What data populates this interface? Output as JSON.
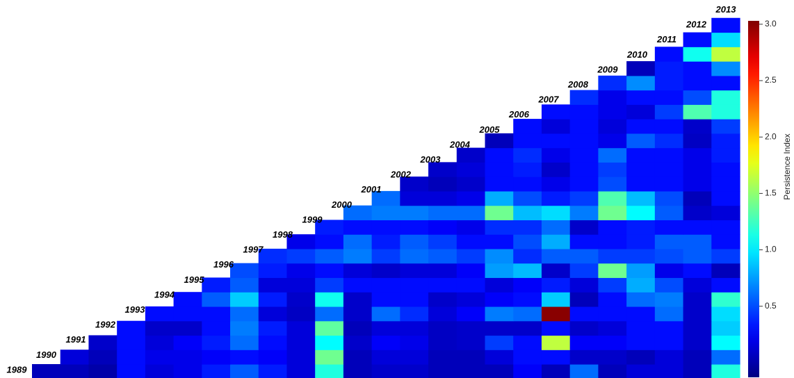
{
  "chart_data": {
    "type": "heatmap",
    "colormap": "jet",
    "categories": [
      "1989",
      "1990",
      "1991",
      "1992",
      "1993",
      "1994",
      "1995",
      "1996",
      "1997",
      "1998",
      "1999",
      "2000",
      "2001",
      "2002",
      "2003",
      "2004",
      "2005",
      "2006",
      "2007",
      "2008",
      "2009",
      "2010",
      "2011",
      "2012",
      "2013"
    ],
    "values": [
      [
        0.05,
        0.05,
        0.0,
        0.3,
        0.15,
        0.2,
        0.35,
        0.55,
        0.35,
        0.15,
        1.15,
        0.05,
        0.1,
        0.1,
        0.05,
        0.05,
        0.05,
        0.25,
        0.05,
        0.6,
        0.05,
        0.15,
        0.15,
        0.05,
        1.15
      ],
      [
        0.15,
        0.05,
        0.3,
        0.2,
        0.2,
        0.25,
        0.3,
        0.25,
        0.15,
        1.4,
        0.05,
        0.15,
        0.15,
        0.05,
        0.05,
        0.15,
        0.3,
        0.3,
        0.1,
        0.1,
        0.05,
        0.15,
        0.05,
        0.6
      ],
      [
        0.1,
        0.3,
        0.15,
        0.25,
        0.35,
        0.6,
        0.3,
        0.15,
        1.05,
        0.1,
        0.25,
        0.2,
        0.08,
        0.1,
        0.45,
        0.3,
        1.65,
        0.25,
        0.25,
        0.3,
        0.3,
        0.1,
        1.05
      ],
      [
        0.3,
        0.1,
        0.1,
        0.3,
        0.65,
        0.35,
        0.15,
        1.35,
        0.05,
        0.15,
        0.15,
        0.08,
        0.1,
        0.1,
        0.1,
        0.3,
        0.1,
        0.15,
        0.3,
        0.3,
        0.1,
        0.9
      ],
      [
        0.3,
        0.3,
        0.3,
        0.6,
        0.15,
        0.08,
        0.6,
        0.1,
        0.6,
        0.4,
        0.15,
        0.25,
        0.65,
        0.6,
        3.0,
        0.3,
        0.3,
        0.3,
        0.6,
        0.1,
        0.95
      ],
      [
        0.3,
        0.55,
        0.9,
        0.35,
        0.1,
        1.1,
        0.1,
        0.3,
        0.3,
        0.1,
        0.15,
        0.25,
        0.3,
        0.9,
        0.05,
        0.3,
        0.6,
        0.65,
        0.1,
        1.2
      ],
      [
        0.35,
        0.55,
        0.15,
        0.15,
        0.45,
        0.3,
        0.3,
        0.3,
        0.3,
        0.3,
        0.15,
        0.25,
        0.35,
        0.15,
        0.45,
        0.8,
        0.5,
        0.15,
        0.3
      ],
      [
        0.5,
        0.35,
        0.2,
        0.3,
        0.15,
        0.1,
        0.15,
        0.15,
        0.25,
        0.75,
        0.85,
        0.1,
        0.45,
        1.4,
        0.75,
        0.2,
        0.3,
        0.05
      ],
      [
        0.4,
        0.45,
        0.55,
        0.65,
        0.45,
        0.6,
        0.55,
        0.45,
        0.7,
        0.4,
        0.55,
        0.55,
        0.45,
        0.45,
        0.5,
        0.55,
        0.45
      ],
      [
        0.2,
        0.3,
        0.6,
        0.35,
        0.55,
        0.45,
        0.3,
        0.3,
        0.5,
        0.8,
        0.3,
        0.3,
        0.35,
        0.55,
        0.55,
        0.3
      ],
      [
        0.35,
        0.3,
        0.3,
        0.3,
        0.25,
        0.2,
        0.4,
        0.4,
        0.6,
        0.1,
        0.3,
        0.35,
        0.3,
        0.3,
        0.3
      ],
      [
        0.6,
        0.65,
        0.65,
        0.6,
        0.6,
        1.4,
        0.85,
        0.95,
        0.65,
        1.4,
        1.05,
        0.55,
        0.1,
        0.15
      ],
      [
        0.6,
        0.15,
        0.15,
        0.2,
        0.8,
        0.5,
        0.35,
        0.45,
        1.3,
        0.85,
        0.5,
        0.05,
        0.3
      ],
      [
        0.1,
        0.05,
        0.1,
        0.3,
        0.3,
        0.2,
        0.3,
        0.5,
        0.3,
        0.3,
        0.2,
        0.3
      ],
      [
        0.1,
        0.15,
        0.3,
        0.35,
        0.1,
        0.3,
        0.45,
        0.3,
        0.3,
        0.2,
        0.3
      ],
      [
        0.1,
        0.3,
        0.4,
        0.2,
        0.3,
        0.6,
        0.3,
        0.3,
        0.2,
        0.35
      ],
      [
        0.05,
        0.3,
        0.3,
        0.3,
        0.2,
        0.55,
        0.4,
        0.08,
        0.35
      ],
      [
        0.3,
        0.15,
        0.3,
        0.15,
        0.3,
        0.3,
        0.1,
        0.45
      ],
      [
        0.3,
        0.3,
        0.2,
        0.15,
        0.45,
        1.3,
        1.15
      ],
      [
        0.4,
        0.2,
        0.3,
        0.3,
        0.5,
        1.15
      ],
      [
        0.4,
        0.7,
        0.35,
        0.3,
        0.3
      ],
      [
        0.05,
        0.35,
        0.3,
        0.7
      ],
      [
        0.3,
        1.1,
        1.65
      ],
      [
        0.3,
        0.95
      ],
      [
        0.3
      ]
    ],
    "zlim": [
      -0.13,
      3.03
    ],
    "zticks": [
      0.5,
      {
        "value": 1,
        "label": "1.0"
      },
      1.5,
      {
        "value": 2,
        "label": "2.0"
      },
      2.5,
      {
        "value": 3,
        "label": "3.0"
      }
    ],
    "colorbar_label": "Persistence Index"
  }
}
